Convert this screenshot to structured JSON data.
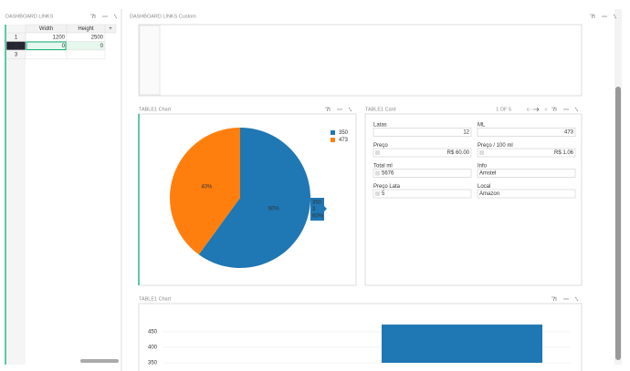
{
  "left_panel": {
    "title": "DASHBOARD LINKS",
    "table": {
      "headers": [
        "Width",
        "Height",
        "+"
      ],
      "row_numbers": [
        "1",
        "2",
        "3"
      ],
      "rows": [
        [
          1200,
          2500
        ],
        [
          0,
          0
        ]
      ]
    }
  },
  "custom_panel": {
    "title": "DASHBOARD LINKS Custom"
  },
  "pie_panel": {
    "title": "TABLE1 Chart"
  },
  "card_panel": {
    "title": "TABLE1 Card",
    "pager": "1 OF 5",
    "fields": [
      {
        "label": "Latas",
        "value": "12"
      },
      {
        "label": "ML",
        "value": "473"
      },
      {
        "label": "Preço",
        "value": "R$ 60.00"
      },
      {
        "label": "Preço / 100 ml",
        "value": "R$ 1.06"
      },
      {
        "label": "Total ml",
        "value": "5676"
      },
      {
        "label": "Info",
        "value": "Amstel"
      },
      {
        "label": "Preço Lata",
        "value": "5"
      },
      {
        "label": "Local",
        "value": "Amazon"
      }
    ]
  },
  "bar_panel": {
    "title": "TABLE1 Chart"
  },
  "chart_data": [
    {
      "type": "pie",
      "categories": [
        "350",
        "473"
      ],
      "values": [
        60,
        40
      ],
      "value_labels": [
        "60%",
        "40%"
      ],
      "colors": [
        "#1f77b4",
        "#ff7f0e"
      ],
      "tooltip": [
        "350",
        "3",
        "60%"
      ]
    },
    {
      "type": "bar",
      "categories": [
        null,
        null
      ],
      "values": [
        null,
        473
      ],
      "color": "#1f77b4",
      "ylim": [
        350,
        526
      ],
      "yticks": [
        350,
        400,
        450
      ],
      "grid": true
    }
  ]
}
